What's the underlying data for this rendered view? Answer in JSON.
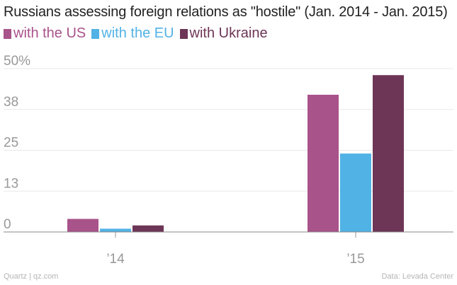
{
  "title": "Russians assessing foreign relations as \"hostile\" (Jan. 2014 - Jan. 2015)",
  "footer": {
    "left": "Quartz | qz.com",
    "right": "Data: Levada Center"
  },
  "chart_data": {
    "type": "bar",
    "title": "Russians assessing foreign relations as \"hostile\" (Jan. 2014 - Jan. 2015)",
    "categories": [
      "’14",
      "’15"
    ],
    "series": [
      {
        "name": "with the US",
        "color": "#a8538a",
        "values": [
          4,
          42
        ]
      },
      {
        "name": "with the EU",
        "color": "#51b2e5",
        "values": [
          1,
          24
        ]
      },
      {
        "name": "with Ukraine",
        "color": "#6d3556",
        "values": [
          2,
          48
        ]
      }
    ],
    "yticks": [
      {
        "value": 0,
        "label": "0"
      },
      {
        "value": 12.5,
        "label": "13"
      },
      {
        "value": 25,
        "label": "25"
      },
      {
        "value": 37.5,
        "label": "38"
      },
      {
        "value": 50,
        "label": "50%"
      }
    ],
    "ylim": [
      0,
      50
    ],
    "grid": true,
    "legend": "top-left",
    "xlabel": "",
    "ylabel": ""
  }
}
